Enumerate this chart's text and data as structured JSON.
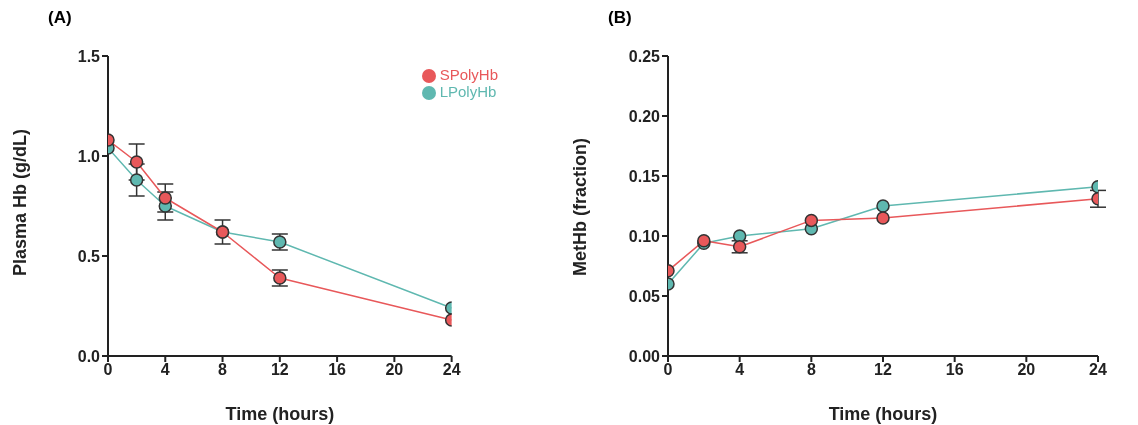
{
  "chart_data": [
    {
      "type": "line",
      "title": "(A)",
      "xlabel": "Time (hours)",
      "ylabel": "Plasma Hb (g/dL)",
      "x": [
        0,
        2,
        4,
        8,
        12,
        24
      ],
      "xlim": [
        0,
        24
      ],
      "xticks": [
        0,
        4,
        8,
        12,
        16,
        20,
        24
      ],
      "ylim": [
        0,
        1.5
      ],
      "yticks": [
        {
          "value": 0,
          "label": "0.0"
        },
        0.5,
        {
          "value": 1,
          "label": "1.0"
        },
        1.5
      ],
      "legend": "top right",
      "marker": "circle",
      "grid": false,
      "series": [
        {
          "name": "SPolyHb",
          "color": "#e8585a",
          "values": [
            1.08,
            0.97,
            0.79,
            0.62,
            0.39,
            0.18
          ],
          "errors": [
            null,
            0.09,
            0.07,
            0.06,
            0.04,
            null
          ]
        },
        {
          "name": "LPolyHb",
          "color": "#5fb8b0",
          "values": [
            1.04,
            0.88,
            0.75,
            0.62,
            0.57,
            0.24
          ],
          "errors": [
            null,
            0.08,
            0.07,
            null,
            0.04,
            null
          ]
        }
      ]
    },
    {
      "type": "line",
      "title": "(B)",
      "xlabel": "Time (hours)",
      "ylabel": "MetHb (fraction)",
      "x": [
        0,
        2,
        4,
        8,
        12,
        24
      ],
      "xlim": [
        0,
        24
      ],
      "xticks": [
        0,
        4,
        8,
        12,
        16,
        20,
        24
      ],
      "ylim": [
        0,
        0.25
      ],
      "yticks": [
        {
          "value": 0,
          "label": "0.00"
        },
        0.05,
        {
          "value": 0.1,
          "label": "0.10"
        },
        0.15,
        {
          "value": 0.2,
          "label": "0.20"
        },
        0.25
      ],
      "marker": "circle",
      "grid": false,
      "series": [
        {
          "color": "#e8585a",
          "values": [
            0.071,
            0.096,
            0.091,
            0.113,
            0.115,
            0.131
          ],
          "errors": [
            null,
            null,
            0.005,
            null,
            null,
            0.007
          ]
        },
        {
          "color": "#5fb8b0",
          "values": [
            0.06,
            0.094,
            0.1,
            0.106,
            0.125,
            0.141
          ],
          "errors": [
            null,
            null,
            null,
            null,
            null,
            null
          ]
        }
      ]
    }
  ]
}
